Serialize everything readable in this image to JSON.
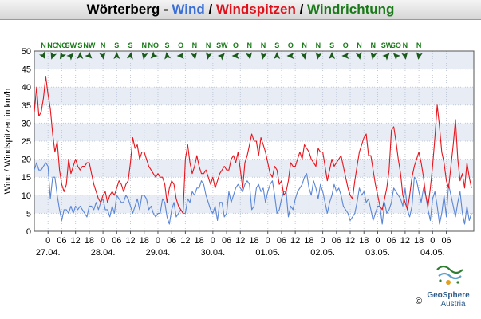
{
  "header": {
    "station": "Wörterberg",
    "sep1": " - ",
    "part_wind": "Wind",
    "sep2": " / ",
    "part_gust": "Windspitzen",
    "sep3": " / ",
    "part_dir": "Windrichtung"
  },
  "colors": {
    "wind": "#5a86d6",
    "gust": "#e8141c",
    "direction": "#1a7a1a",
    "arrow": "#1a5a1a",
    "band_light": "#e8edf5",
    "grid": "#c0c8d8"
  },
  "chart_data": {
    "type": "line",
    "ylabel": "Wind / Windspitzen in km/h",
    "ylim": [
      0,
      50
    ],
    "yticks": [
      0,
      5,
      10,
      15,
      20,
      25,
      30,
      35,
      40,
      45,
      50
    ],
    "x_unit": "hours since start of plotted period",
    "xlim": [
      0,
      192
    ],
    "hour_labels": [
      {
        "x": 6,
        "label": "0"
      },
      {
        "x": 12,
        "label": "06"
      },
      {
        "x": 18,
        "label": "12"
      },
      {
        "x": 24,
        "label": "18"
      },
      {
        "x": 30,
        "label": "0"
      },
      {
        "x": 36,
        "label": "06"
      },
      {
        "x": 42,
        "label": "12"
      },
      {
        "x": 48,
        "label": "18"
      },
      {
        "x": 54,
        "label": "0"
      },
      {
        "x": 60,
        "label": "06"
      },
      {
        "x": 66,
        "label": "12"
      },
      {
        "x": 72,
        "label": "18"
      },
      {
        "x": 78,
        "label": "0"
      },
      {
        "x": 84,
        "label": "06"
      },
      {
        "x": 90,
        "label": "12"
      },
      {
        "x": 96,
        "label": "18"
      },
      {
        "x": 102,
        "label": "0"
      },
      {
        "x": 108,
        "label": "06"
      },
      {
        "x": 114,
        "label": "12"
      },
      {
        "x": 120,
        "label": "18"
      },
      {
        "x": 126,
        "label": "0"
      },
      {
        "x": 132,
        "label": "06"
      },
      {
        "x": 138,
        "label": "12"
      },
      {
        "x": 144,
        "label": "18"
      },
      {
        "x": 150,
        "label": "0"
      },
      {
        "x": 156,
        "label": "06"
      },
      {
        "x": 162,
        "label": "12"
      },
      {
        "x": 168,
        "label": "18"
      },
      {
        "x": 174,
        "label": "0"
      },
      {
        "x": 180,
        "label": "06"
      }
    ],
    "date_labels": [
      {
        "x": 6,
        "label": "27.04."
      },
      {
        "x": 30,
        "label": "28.04."
      },
      {
        "x": 54,
        "label": "29.04."
      },
      {
        "x": 78,
        "label": "30.04."
      },
      {
        "x": 102,
        "label": "01.05."
      },
      {
        "x": 126,
        "label": "02.05."
      },
      {
        "x": 150,
        "label": "03.05."
      },
      {
        "x": 174,
        "label": "04.05."
      }
    ],
    "directions": [
      {
        "x": 4,
        "label": "N",
        "deg": 330
      },
      {
        "x": 8,
        "label": "NO",
        "deg": 20
      },
      {
        "x": 12,
        "label": "NO",
        "deg": 30
      },
      {
        "x": 16,
        "label": "SW",
        "deg": 225
      },
      {
        "x": 20,
        "label": "S",
        "deg": 180
      },
      {
        "x": 24,
        "label": "NW",
        "deg": 315
      },
      {
        "x": 30,
        "label": "N",
        "deg": 350
      },
      {
        "x": 36,
        "label": "S",
        "deg": 180
      },
      {
        "x": 42,
        "label": "S",
        "deg": 190
      },
      {
        "x": 48,
        "label": "N",
        "deg": 10
      },
      {
        "x": 52,
        "label": "NO",
        "deg": 45
      },
      {
        "x": 58,
        "label": "S",
        "deg": 170
      },
      {
        "x": 64,
        "label": "O",
        "deg": 90
      },
      {
        "x": 70,
        "label": "N",
        "deg": 350
      },
      {
        "x": 76,
        "label": "N",
        "deg": 10
      },
      {
        "x": 82,
        "label": "SW",
        "deg": 225
      },
      {
        "x": 88,
        "label": "O",
        "deg": 90
      },
      {
        "x": 94,
        "label": "N",
        "deg": 350
      },
      {
        "x": 100,
        "label": "N",
        "deg": 10
      },
      {
        "x": 106,
        "label": "S",
        "deg": 180
      },
      {
        "x": 112,
        "label": "O",
        "deg": 90
      },
      {
        "x": 118,
        "label": "N",
        "deg": 350
      },
      {
        "x": 124,
        "label": "N",
        "deg": 10
      },
      {
        "x": 130,
        "label": "S",
        "deg": 180
      },
      {
        "x": 136,
        "label": "O",
        "deg": 90
      },
      {
        "x": 142,
        "label": "N",
        "deg": 350
      },
      {
        "x": 148,
        "label": "N",
        "deg": 10
      },
      {
        "x": 154,
        "label": "SW",
        "deg": 225
      },
      {
        "x": 158,
        "label": "SO",
        "deg": 135
      },
      {
        "x": 162,
        "label": "N",
        "deg": 350
      },
      {
        "x": 168,
        "label": "N",
        "deg": 10
      }
    ],
    "series": [
      {
        "name": "Wind",
        "key": "wind",
        "x": [
          0,
          1,
          2,
          3,
          4,
          5,
          6,
          7,
          8,
          9,
          10,
          11,
          12,
          13,
          14,
          15,
          16,
          17,
          18,
          19,
          20,
          21,
          22,
          23,
          24,
          25,
          26,
          27,
          28,
          29,
          30,
          31,
          32,
          33,
          34,
          35,
          36,
          37,
          38,
          39,
          40,
          41,
          42,
          43,
          44,
          45,
          46,
          47,
          48,
          49,
          50,
          51,
          52,
          53,
          54,
          55,
          56,
          57,
          58,
          59,
          60,
          61,
          62,
          63,
          64,
          65,
          66,
          67,
          68,
          69,
          70,
          71,
          72,
          73,
          74,
          75,
          76,
          77,
          78,
          79,
          80,
          81,
          82,
          83,
          84,
          85,
          86,
          87,
          88,
          89,
          90,
          91,
          92,
          93,
          94,
          95,
          96,
          97,
          98,
          99,
          100,
          101,
          102,
          103,
          104,
          105,
          106,
          107,
          108,
          109,
          110,
          111,
          112,
          113,
          114,
          115,
          116,
          117,
          118,
          119,
          120,
          121,
          122,
          123,
          124,
          125,
          126,
          127,
          128,
          129,
          130,
          131,
          132,
          133,
          134,
          135,
          136,
          137,
          138,
          139,
          140,
          141,
          142,
          143,
          144,
          145,
          146,
          147,
          148,
          149,
          150,
          151,
          152,
          153,
          154,
          155,
          156,
          157,
          158,
          159,
          160,
          161,
          162,
          163,
          164,
          165,
          166,
          167,
          168,
          169,
          170,
          171,
          172,
          173,
          174,
          175,
          176,
          177,
          178,
          179,
          180,
          181,
          182,
          183,
          184,
          185,
          186,
          187,
          188,
          189,
          190,
          191
        ],
        "values": [
          17,
          19,
          17,
          17,
          18,
          19,
          18,
          9,
          15,
          15,
          10,
          6,
          3,
          6,
          6,
          5,
          7,
          5,
          7,
          6,
          7,
          6,
          5,
          4,
          7,
          7,
          6,
          8,
          6,
          8,
          9,
          6,
          6,
          4,
          7,
          5,
          10,
          9,
          8,
          8,
          10,
          9,
          7,
          5,
          7,
          9,
          6,
          10,
          10,
          9,
          6,
          7,
          5,
          4,
          5,
          5,
          9,
          8,
          4,
          2,
          6,
          8,
          4,
          5,
          6,
          5,
          5,
          9,
          8,
          11,
          10,
          12,
          12,
          14,
          13,
          10,
          8,
          6,
          5,
          7,
          3,
          8,
          8,
          4,
          5,
          11,
          8,
          10,
          12,
          13,
          12,
          11,
          13,
          14,
          13,
          6,
          7,
          12,
          13,
          11,
          12,
          8,
          11,
          13,
          14,
          10,
          5,
          6,
          9,
          11,
          11,
          4,
          7,
          6,
          9,
          11,
          12,
          13,
          15,
          16,
          12,
          10,
          14,
          12,
          9,
          13,
          11,
          8,
          5,
          8,
          10,
          13,
          11,
          12,
          10,
          7,
          6,
          5,
          3,
          4,
          5,
          8,
          12,
          10,
          11,
          8,
          9,
          6,
          3,
          5,
          7,
          7,
          2,
          8,
          5,
          6,
          8,
          12,
          11,
          10,
          9,
          7,
          12,
          6,
          4,
          7,
          15,
          14,
          11,
          8,
          12,
          10,
          6,
          3,
          9,
          11,
          7,
          2,
          5,
          10,
          4,
          13,
          10,
          7,
          4,
          8,
          11,
          5,
          2,
          7,
          3,
          5
        ]
      },
      {
        "name": "Windspitzen",
        "key": "gust",
        "x": [
          0,
          1,
          2,
          3,
          4,
          5,
          6,
          7,
          8,
          9,
          10,
          11,
          12,
          13,
          14,
          15,
          16,
          17,
          18,
          19,
          20,
          21,
          22,
          23,
          24,
          25,
          26,
          27,
          28,
          29,
          30,
          31,
          32,
          33,
          34,
          35,
          36,
          37,
          38,
          39,
          40,
          41,
          42,
          43,
          44,
          45,
          46,
          47,
          48,
          49,
          50,
          51,
          52,
          53,
          54,
          55,
          56,
          57,
          58,
          59,
          60,
          61,
          62,
          63,
          64,
          65,
          66,
          67,
          68,
          69,
          70,
          71,
          72,
          73,
          74,
          75,
          76,
          77,
          78,
          79,
          80,
          81,
          82,
          83,
          84,
          85,
          86,
          87,
          88,
          89,
          90,
          91,
          92,
          93,
          94,
          95,
          96,
          97,
          98,
          99,
          100,
          101,
          102,
          103,
          104,
          105,
          106,
          107,
          108,
          109,
          110,
          111,
          112,
          113,
          114,
          115,
          116,
          117,
          118,
          119,
          120,
          121,
          122,
          123,
          124,
          125,
          126,
          127,
          128,
          129,
          130,
          131,
          132,
          133,
          134,
          135,
          136,
          137,
          138,
          139,
          140,
          141,
          142,
          143,
          144,
          145,
          146,
          147,
          148,
          149,
          150,
          151,
          152,
          153,
          154,
          155,
          156,
          157,
          158,
          159,
          160,
          161,
          162,
          163,
          164,
          165,
          166,
          167,
          168,
          169,
          170,
          171,
          172,
          173,
          174,
          175,
          176,
          177,
          178,
          179,
          180,
          181,
          182,
          183,
          184,
          185,
          186,
          187,
          188,
          189,
          190,
          191
        ],
        "values": [
          33,
          40,
          32,
          33,
          37,
          43,
          38,
          34,
          27,
          22,
          25,
          17,
          13,
          11,
          13,
          20,
          16,
          18,
          20,
          18,
          17,
          18,
          18,
          19,
          19,
          16,
          13,
          11,
          9,
          8,
          10,
          11,
          8,
          10,
          11,
          10,
          12,
          14,
          13,
          11,
          13,
          14,
          19,
          26,
          23,
          24,
          20,
          22,
          22,
          20,
          18,
          17,
          16,
          15,
          16,
          15,
          15,
          13,
          8,
          12,
          14,
          13,
          9,
          7,
          6,
          5,
          20,
          24,
          19,
          16,
          18,
          21,
          18,
          16,
          16,
          17,
          15,
          13,
          15,
          12,
          14,
          16,
          17,
          18,
          17,
          17,
          20,
          21,
          19,
          22,
          17,
          12,
          19,
          21,
          24,
          27,
          25,
          25,
          21,
          26,
          24,
          22,
          19,
          16,
          15,
          18,
          17,
          13,
          14,
          10,
          11,
          14,
          19,
          18,
          18,
          20,
          22,
          20,
          24,
          23,
          22,
          20,
          19,
          18,
          23,
          22,
          22,
          18,
          14,
          17,
          20,
          18,
          19,
          20,
          21,
          18,
          15,
          12,
          10,
          9,
          14,
          18,
          22,
          24,
          26,
          27,
          21,
          21,
          17,
          13,
          10,
          7,
          6,
          9,
          12,
          17,
          28,
          29,
          25,
          20,
          16,
          10,
          8,
          6,
          10,
          15,
          18,
          20,
          22,
          19,
          15,
          10,
          7,
          12,
          18,
          26,
          35,
          29,
          22,
          19,
          14,
          12,
          18,
          24,
          31,
          20,
          14,
          16,
          12,
          19,
          15,
          12
        ]
      }
    ]
  },
  "footer": {
    "logo_name": "GeoSphere",
    "logo_sub": "Austria",
    "copyright": "©"
  }
}
